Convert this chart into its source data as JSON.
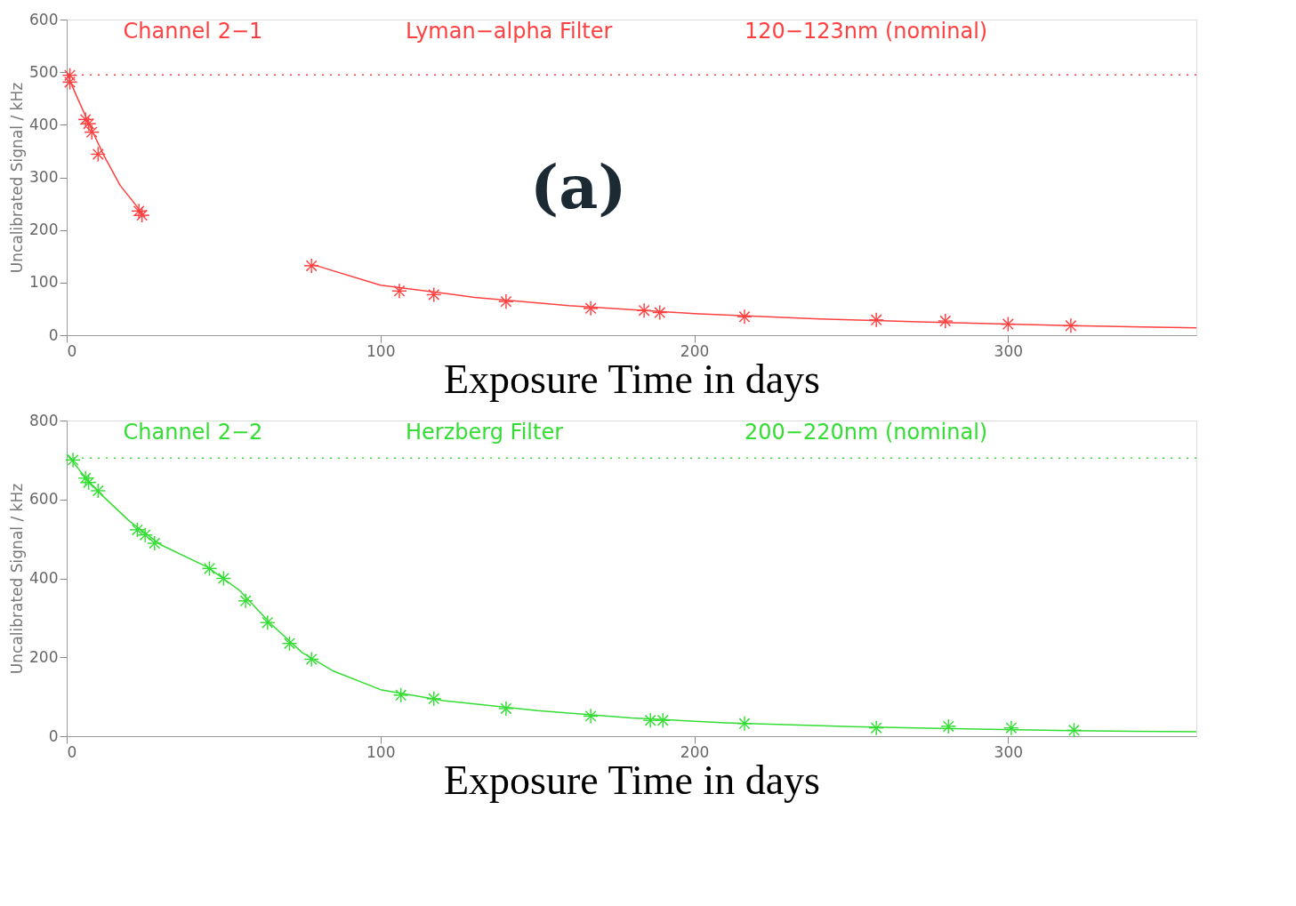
{
  "chart_data": [
    {
      "type": "line",
      "xlabel": "Exposure Time in days",
      "ylabel": "Uncalibrated Signal / kHz",
      "xlim": [
        0,
        360
      ],
      "xticks": [
        0,
        100,
        200,
        300
      ],
      "ylim": [
        0,
        600
      ],
      "yticks": [
        0,
        100,
        200,
        300,
        400,
        500,
        600
      ],
      "annotations": [
        "Channel 2−1",
        "Lyman−alpha Filter",
        "120−123nm (nominal)",
        "(a)"
      ],
      "ref_lines": [
        {
          "axis": "y",
          "value": 495,
          "color": "#ff4040",
          "line_style": "dotted"
        }
      ],
      "series": [
        {
          "type": "scatter",
          "marker": "star",
          "color": "#ff4040",
          "x": [
            1,
            1,
            6,
            7,
            8,
            10,
            23,
            24,
            78,
            106,
            117,
            140,
            167,
            184,
            189,
            216,
            258,
            280,
            300,
            320
          ],
          "values": [
            494,
            481,
            410,
            402,
            386,
            344,
            236,
            228,
            132,
            84,
            77,
            64,
            51,
            47,
            43,
            35,
            29,
            27,
            21,
            18
          ]
        },
        {
          "type": "line",
          "line_style": "solid",
          "color": "#ff4040",
          "x": [
            0,
            2,
            5,
            8,
            12,
            17,
            25,
            40,
            78,
            100,
            130,
            160,
            200,
            240,
            280,
            320,
            360
          ],
          "values": [
            500,
            470,
            430,
            390,
            340,
            285,
            225,
            null,
            135,
            95,
            72,
            56,
            41,
            31,
            24,
            18,
            14
          ]
        }
      ]
    },
    {
      "type": "line",
      "xlabel": "Exposure Time in days",
      "ylabel": "Uncalibrated Signal / kHz",
      "xlim": [
        0,
        360
      ],
      "xticks": [
        0,
        100,
        200,
        300
      ],
      "ylim": [
        0,
        800
      ],
      "yticks": [
        0,
        200,
        400,
        600,
        800
      ],
      "annotations": [
        "Channel 2−2",
        "Herzberg Filter",
        "200−220nm (nominal)"
      ],
      "ref_lines": [
        {
          "axis": "y",
          "value": 705,
          "color": "#33dd33",
          "line_style": "dotted"
        }
      ],
      "series": [
        {
          "type": "scatter",
          "marker": "star",
          "color": "#33dd33",
          "x": [
            2,
            6,
            7,
            10,
            22.5,
            25,
            28,
            45.5,
            50,
            57,
            64,
            71,
            78,
            106.5,
            117,
            140,
            167,
            186,
            190,
            216,
            258,
            281,
            301,
            321
          ],
          "values": [
            700,
            654,
            643,
            622,
            523,
            510,
            489,
            425,
            400,
            343,
            288,
            235,
            195,
            104,
            95,
            70,
            51,
            40,
            40,
            32,
            21,
            25,
            21,
            15
          ]
        },
        {
          "type": "line",
          "line_style": "solid",
          "color": "#33dd33",
          "x": [
            0,
            5,
            10,
            20,
            30,
            45,
            55,
            65,
            75,
            85,
            100,
            120,
            150,
            180,
            210,
            250,
            290,
            320,
            360
          ],
          "values": [
            715,
            665,
            620,
            545,
            485,
            428,
            370,
            285,
            212,
            165,
            118,
            90,
            65,
            46,
            34,
            24,
            18,
            14,
            11
          ]
        }
      ]
    }
  ]
}
